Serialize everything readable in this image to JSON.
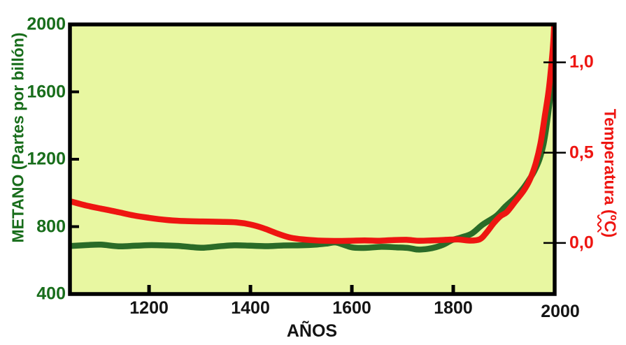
{
  "chart_data": {
    "type": "line",
    "grid": false,
    "legend": false,
    "plot_background": "#e8f7a1",
    "frame_color": "#000000",
    "x_axis": {
      "label": "AÑOS",
      "label_color": "#141414",
      "tick_labels": [
        "1200",
        "1400",
        "1600",
        "1800",
        "2000"
      ],
      "tick_values": [
        1200,
        1400,
        1600,
        1800,
        2000
      ],
      "tick_marks": [
        1200,
        1400,
        1600,
        1800
      ],
      "range": [
        1044,
        2000
      ]
    },
    "y_left": {
      "label": "METANO (Partes por billón)",
      "color": "#186d1b",
      "tick_labels": [
        "2000",
        "1600",
        "1200",
        "800",
        "400"
      ],
      "tick_values": [
        2000,
        1600,
        1200,
        800,
        400
      ],
      "tick_marks": [
        1600,
        1200,
        800
      ],
      "range": [
        400,
        2000
      ]
    },
    "y_right": {
      "label": "Temperatura (ºC)",
      "label_prefix": "Temperatura (",
      "label_unit": "ºC",
      "label_suffix": ")",
      "color": "#ee1511",
      "tick_labels": [
        "1,0",
        "0,5",
        "0,0"
      ],
      "tick_values": [
        1.0,
        0.5,
        0.0
      ],
      "tick_marks": [
        1.0,
        0.5,
        0.0
      ],
      "range": [
        -0.283,
        1.21
      ]
    },
    "series": [
      {
        "name": "METANO",
        "axis": "left",
        "color": "#2a6b28",
        "points": [
          [
            1044,
            685
          ],
          [
            1075,
            690
          ],
          [
            1105,
            693
          ],
          [
            1140,
            683
          ],
          [
            1175,
            687
          ],
          [
            1205,
            690
          ],
          [
            1235,
            688
          ],
          [
            1260,
            685
          ],
          [
            1285,
            678
          ],
          [
            1308,
            675
          ],
          [
            1338,
            683
          ],
          [
            1368,
            689
          ],
          [
            1400,
            687
          ],
          [
            1432,
            684
          ],
          [
            1465,
            688
          ],
          [
            1500,
            689
          ],
          [
            1532,
            694
          ],
          [
            1552,
            700
          ],
          [
            1568,
            706
          ],
          [
            1586,
            690
          ],
          [
            1602,
            676
          ],
          [
            1628,
            674
          ],
          [
            1658,
            680
          ],
          [
            1688,
            677
          ],
          [
            1712,
            673
          ],
          [
            1730,
            664
          ],
          [
            1750,
            668
          ],
          [
            1766,
            678
          ],
          [
            1782,
            695
          ],
          [
            1797,
            719
          ],
          [
            1817,
            737
          ],
          [
            1837,
            760
          ],
          [
            1858,
            812
          ],
          [
            1885,
            864
          ],
          [
            1903,
            920
          ],
          [
            1922,
            972
          ],
          [
            1936,
            1020
          ],
          [
            1950,
            1080
          ],
          [
            1960,
            1130
          ],
          [
            1970,
            1200
          ],
          [
            1978,
            1290
          ],
          [
            1985,
            1420
          ],
          [
            1991,
            1560
          ],
          [
            1996,
            1660
          ],
          [
            2000,
            1740
          ]
        ]
      },
      {
        "name": "Temperatura",
        "axis": "right",
        "color": "#ee1511",
        "points": [
          [
            1044,
            0.231
          ],
          [
            1075,
            0.208
          ],
          [
            1105,
            0.19
          ],
          [
            1140,
            0.17
          ],
          [
            1170,
            0.152
          ],
          [
            1200,
            0.139
          ],
          [
            1235,
            0.127
          ],
          [
            1270,
            0.121
          ],
          [
            1305,
            0.119
          ],
          [
            1340,
            0.117
          ],
          [
            1372,
            0.114
          ],
          [
            1400,
            0.102
          ],
          [
            1425,
            0.082
          ],
          [
            1452,
            0.053
          ],
          [
            1478,
            0.03
          ],
          [
            1505,
            0.019
          ],
          [
            1535,
            0.013
          ],
          [
            1565,
            0.011
          ],
          [
            1595,
            0.012
          ],
          [
            1625,
            0.014
          ],
          [
            1655,
            0.012
          ],
          [
            1682,
            0.016
          ],
          [
            1708,
            0.017
          ],
          [
            1732,
            0.012
          ],
          [
            1758,
            0.014
          ],
          [
            1785,
            0.017
          ],
          [
            1810,
            0.019
          ],
          [
            1832,
            0.013
          ],
          [
            1852,
            0.02
          ],
          [
            1865,
            0.055
          ],
          [
            1880,
            0.11
          ],
          [
            1893,
            0.148
          ],
          [
            1906,
            0.172
          ],
          [
            1923,
            0.232
          ],
          [
            1939,
            0.29
          ],
          [
            1951,
            0.35
          ],
          [
            1962,
            0.435
          ],
          [
            1972,
            0.55
          ],
          [
            1981,
            0.71
          ],
          [
            1988,
            0.84
          ],
          [
            1993,
            0.97
          ],
          [
            1997,
            1.1
          ],
          [
            1999,
            1.21
          ]
        ]
      }
    ]
  }
}
